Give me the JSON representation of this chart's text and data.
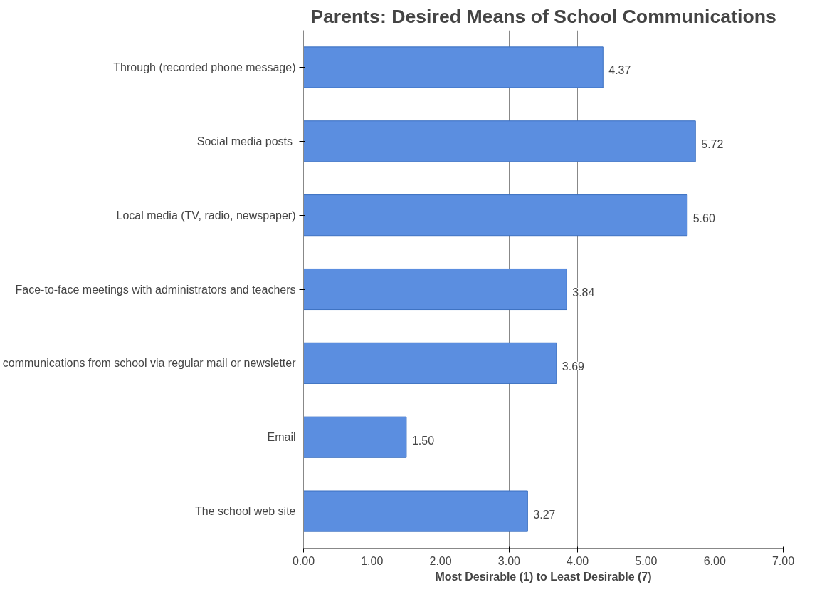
{
  "chart_data": {
    "type": "bar",
    "orientation": "horizontal",
    "title": "Parents: Desired Means of School Communications",
    "xlabel": "Most Desirable (1) to Least Desirable (7)",
    "categories": [
      "Through (recorded phone message)",
      "Social  media posts",
      "Local media (TV, radio, newspaper)",
      "Face-to-face meetings with administrators and teachers",
      "communications from school via regular mail or newsletter",
      "Email",
      "The school web site"
    ],
    "values": [
      4.37,
      5.72,
      5.6,
      3.84,
      3.69,
      1.5,
      3.27
    ],
    "value_labels": [
      "4.37",
      "5.72",
      "5.60",
      "3.84",
      "3.69",
      "1.50",
      "3.27"
    ],
    "color": "#5b8ee0",
    "xlim": [
      0,
      7
    ],
    "xticks": [
      {
        "value": 0,
        "label": "0.00"
      },
      {
        "value": 1,
        "label": "1.00"
      },
      {
        "value": 2,
        "label": "2.00"
      },
      {
        "value": 3,
        "label": "3.00"
      },
      {
        "value": 4,
        "label": "4.00"
      },
      {
        "value": 5,
        "label": "5.00"
      },
      {
        "value": 6,
        "label": "6.00"
      },
      {
        "value": 7,
        "label": "7.00"
      }
    ],
    "grid": "x"
  }
}
